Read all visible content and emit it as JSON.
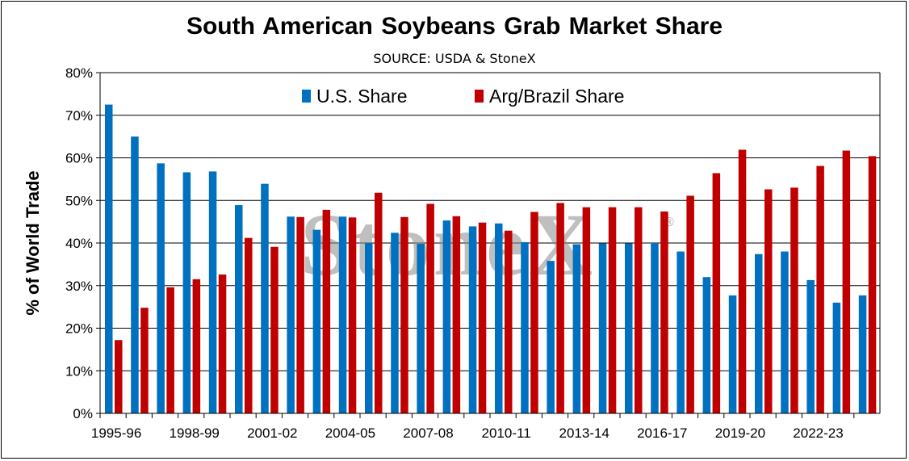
{
  "title": "South American  Soybeans Grab Market Share",
  "subtitle": "SOURCE: USDA & StoneX",
  "watermark": "StoneX",
  "watermark_mark": "®",
  "colors": {
    "us": "#0070c0",
    "argbrazil": "#c00000",
    "grid": "#000000"
  },
  "chart_data": {
    "type": "bar",
    "title": "South American  Soybeans Grab Market Share",
    "subtitle": "SOURCE: USDA & StoneX",
    "ylabel": "% of World Trade",
    "xlabel": "",
    "ylim": [
      0,
      80
    ],
    "yticks": [
      "0%",
      "10%",
      "20%",
      "30%",
      "40%",
      "50%",
      "60%",
      "70%",
      "80%"
    ],
    "grid": true,
    "legend_position": "top",
    "categories": [
      "1995-96",
      "1996-97",
      "1997-98",
      "1998-99",
      "1999-00",
      "2000-01",
      "2001-02",
      "2002-03",
      "2003-04",
      "2004-05",
      "2005-06",
      "2006-07",
      "2007-08",
      "2008-09",
      "2009-10",
      "2010-11",
      "2011-12",
      "2012-13",
      "2013-14",
      "2014-15",
      "2015-16",
      "2016-17",
      "2017-18",
      "2018-19",
      "2019-20",
      "2020-21",
      "2021-22",
      "2022-23",
      "2023-24",
      "2024-25"
    ],
    "xtick_labels": [
      "1995-96",
      "",
      "",
      "1998-99",
      "",
      "",
      "2001-02",
      "",
      "",
      "2004-05",
      "",
      "",
      "2007-08",
      "",
      "",
      "2010-11",
      "",
      "",
      "2013-14",
      "",
      "",
      "2016-17",
      "",
      "",
      "2019-20",
      "",
      "",
      "2022-23",
      "",
      ""
    ],
    "series": [
      {
        "name": "U.S. Share",
        "values": [
          72.5,
          65.0,
          58.7,
          56.6,
          56.8,
          48.9,
          53.9,
          46.2,
          43.1,
          46.2,
          40.0,
          42.4,
          39.8,
          45.3,
          43.9,
          44.6,
          40.2,
          35.8,
          39.7,
          39.9,
          39.9,
          40.0,
          38.0,
          32.0,
          27.7,
          37.4,
          38.0,
          31.3,
          26.0,
          27.7
        ]
      },
      {
        "name": "Arg/Brazil Share",
        "values": [
          17.2,
          24.8,
          29.6,
          31.5,
          32.6,
          41.2,
          39.1,
          46.1,
          47.8,
          46.0,
          51.8,
          46.1,
          49.2,
          46.3,
          44.8,
          42.9,
          47.3,
          49.4,
          48.4,
          48.4,
          48.4,
          47.4,
          51.1,
          56.4,
          61.9,
          52.6,
          53.0,
          58.1,
          61.7,
          60.4
        ]
      }
    ]
  }
}
